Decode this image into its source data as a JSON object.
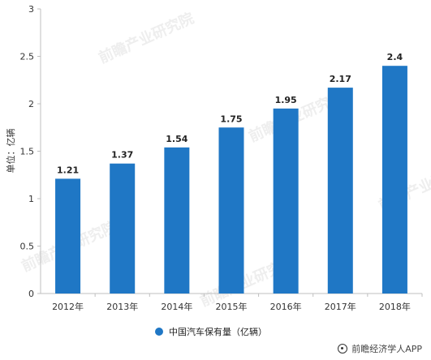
{
  "chart_data": {
    "type": "bar",
    "title": "",
    "xlabel": "",
    "ylabel": "单位：亿辆",
    "categories": [
      "2012年",
      "2013年",
      "2014年",
      "2015年",
      "2016年",
      "2017年",
      "2018年"
    ],
    "series": [
      {
        "name": "中国汽车保有量（亿辆）",
        "values": [
          1.21,
          1.37,
          1.54,
          1.75,
          1.95,
          2.17,
          2.4
        ],
        "color": "#1f77c5"
      }
    ],
    "data_labels": [
      "1.21",
      "1.37",
      "1.54",
      "1.75",
      "1.95",
      "2.17",
      "2.4"
    ],
    "ylim": [
      0,
      3
    ],
    "yticks": [
      0,
      0.5,
      1,
      1.5,
      2,
      2.5,
      3
    ],
    "ytick_labels": [
      "0",
      "0.5",
      "1",
      "1.5",
      "2",
      "2.5",
      "3"
    ],
    "grid": false,
    "legend_position": "bottom-center"
  },
  "footer": {
    "text": "前瞻经济学人APP",
    "icon": "logo-icon"
  },
  "watermark": {
    "text": "前瞻产业研究院"
  },
  "colors": {
    "bar": "#1f77c5",
    "axis": "#bfbfbf",
    "text": "#333333"
  }
}
